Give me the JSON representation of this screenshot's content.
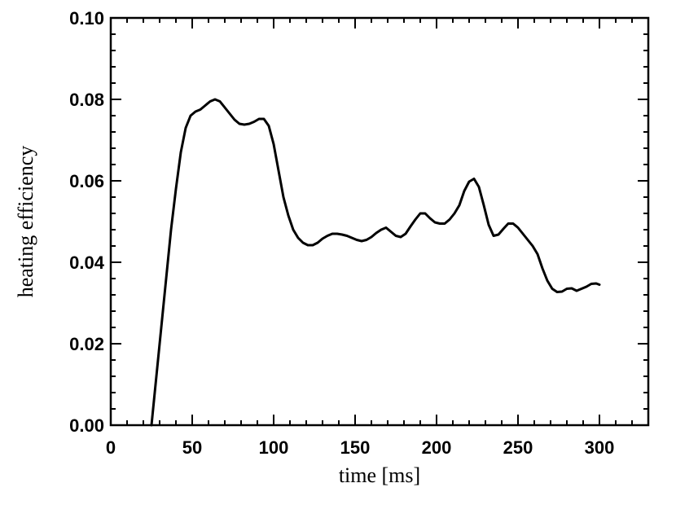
{
  "chart_data": {
    "type": "line",
    "title": "",
    "xlabel": "time [ms]",
    "ylabel": "heating efficiency",
    "xlim": [
      0,
      330
    ],
    "ylim": [
      0.0,
      0.1
    ],
    "grid": false,
    "x_major_ticks": [
      0,
      50,
      100,
      150,
      200,
      250,
      300
    ],
    "x_tick_labels": [
      "0",
      "50",
      "100",
      "150",
      "200",
      "250",
      "300"
    ],
    "x_minor_step": 10,
    "y_major_ticks": [
      0.0,
      0.02,
      0.04,
      0.06,
      0.08,
      0.1
    ],
    "y_tick_labels": [
      "0.00",
      "0.02",
      "0.04",
      "0.06",
      "0.08",
      "0.10"
    ],
    "y_minor_step": 0.004,
    "line_color": "#000000",
    "series": [
      {
        "x": [
          25,
          28,
          31,
          34,
          37,
          40,
          43,
          46,
          49,
          52,
          55,
          58,
          61,
          64,
          67,
          70,
          73,
          76,
          79,
          82,
          85,
          88,
          91,
          94,
          97,
          100,
          103,
          106,
          109,
          112,
          115,
          118,
          121,
          124,
          127,
          130,
          133,
          136,
          139,
          142,
          145,
          148,
          151,
          154,
          157,
          160,
          163,
          166,
          169,
          172,
          175,
          178,
          181,
          184,
          187,
          190,
          193,
          196,
          199,
          202,
          205,
          208,
          211,
          214,
          217,
          220,
          223,
          226,
          229,
          232,
          235,
          238,
          241,
          244,
          247,
          250,
          253,
          256,
          259,
          262,
          265,
          268,
          271,
          274,
          277,
          280,
          283,
          286,
          289,
          292,
          295,
          298,
          300
        ],
        "y": [
          0.0,
          0.012,
          0.024,
          0.036,
          0.048,
          0.058,
          0.067,
          0.073,
          0.076,
          0.077,
          0.0775,
          0.0785,
          0.0795,
          0.08,
          0.0795,
          0.078,
          0.0765,
          0.075,
          0.074,
          0.0738,
          0.074,
          0.0745,
          0.0752,
          0.0752,
          0.0735,
          0.069,
          0.0625,
          0.056,
          0.0515,
          0.048,
          0.046,
          0.0448,
          0.0442,
          0.0442,
          0.0448,
          0.0458,
          0.0465,
          0.047,
          0.047,
          0.0468,
          0.0465,
          0.046,
          0.0455,
          0.0452,
          0.0455,
          0.0462,
          0.0472,
          0.048,
          0.0485,
          0.0475,
          0.0465,
          0.0462,
          0.047,
          0.0488,
          0.0505,
          0.052,
          0.052,
          0.0508,
          0.0498,
          0.0495,
          0.0495,
          0.0505,
          0.052,
          0.054,
          0.0575,
          0.0598,
          0.0605,
          0.0585,
          0.054,
          0.0492,
          0.0465,
          0.0468,
          0.0482,
          0.0495,
          0.0495,
          0.0485,
          0.047,
          0.0455,
          0.044,
          0.042,
          0.0385,
          0.0355,
          0.0335,
          0.0327,
          0.0328,
          0.0335,
          0.0336,
          0.033,
          0.0335,
          0.034,
          0.0347,
          0.0348,
          0.0345
        ]
      }
    ]
  }
}
